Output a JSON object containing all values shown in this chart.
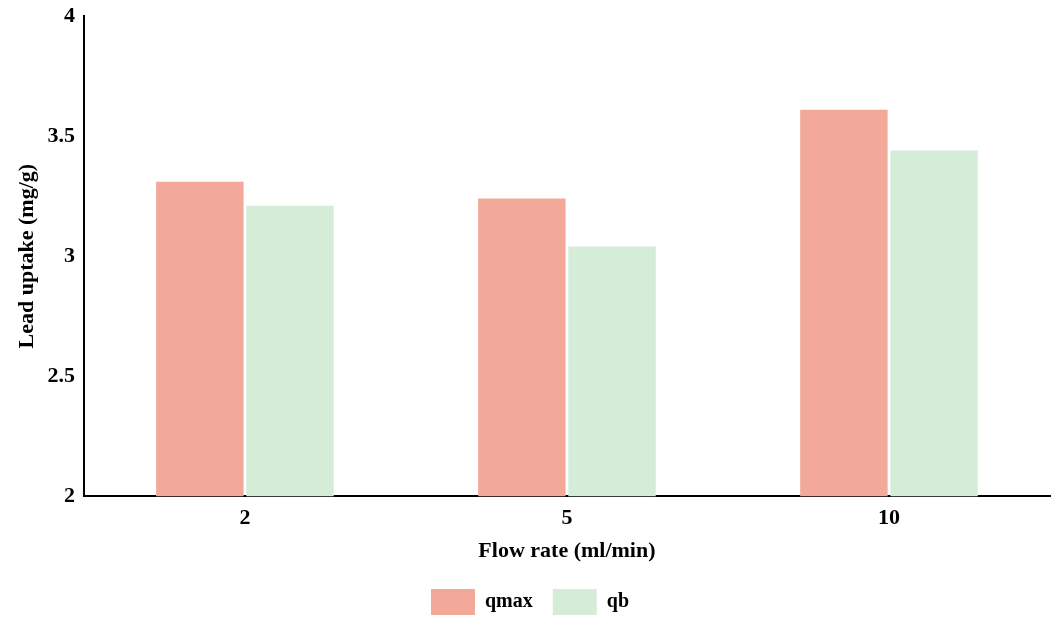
{
  "chart_data": {
    "type": "bar",
    "xlabel": "Flow rate (ml/min)",
    "ylabel": "Lead uptake (mg/g)",
    "categories": [
      "2",
      "5",
      "10"
    ],
    "series": [
      {
        "name": "qmax",
        "color": "#f2a99a",
        "values": [
          3.31,
          3.24,
          3.61
        ]
      },
      {
        "name": "qb",
        "color": "#d4ecd8",
        "values": [
          3.21,
          3.04,
          3.44
        ]
      }
    ],
    "ylim": [
      2,
      4
    ],
    "yticks": [
      2,
      2.5,
      3,
      3.5,
      4
    ],
    "grid": false,
    "legend": "bottom"
  }
}
